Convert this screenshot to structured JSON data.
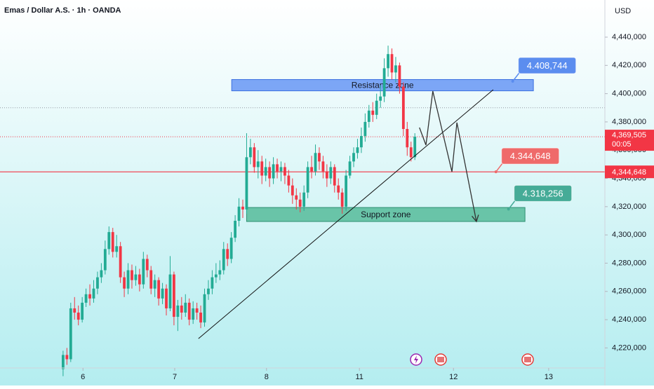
{
  "chart_data": {
    "type": "candlestick",
    "title": "Emas / Dollar A.S. · 1h · OANDA",
    "currency": "USD",
    "x": [
      0,
      1,
      2,
      3,
      4,
      5,
      6,
      7,
      8,
      9,
      10,
      11,
      12,
      13,
      14,
      15,
      16,
      17,
      18,
      19,
      20,
      21,
      22,
      23,
      24,
      25,
      26,
      27,
      28,
      29,
      30,
      31,
      32,
      33,
      34,
      35,
      36,
      37,
      38,
      39,
      40,
      41,
      42,
      43,
      44,
      45,
      46,
      47,
      48,
      49,
      50,
      51,
      52,
      53,
      54,
      55,
      56,
      57,
      58,
      59,
      60,
      61,
      62,
      63,
      64,
      65,
      66,
      67,
      68,
      69,
      70,
      71,
      72,
      73,
      74,
      75,
      76,
      77,
      78,
      79,
      80,
      81,
      82,
      83,
      84,
      85,
      86,
      87,
      88,
      89,
      90,
      91,
      92
    ],
    "open": [
      4205000,
      4215000,
      4212000,
      4248000,
      4245000,
      4240000,
      4252000,
      4258000,
      4255000,
      4262000,
      4270000,
      4275000,
      4290000,
      4302000,
      4288000,
      4292000,
      4270000,
      4262000,
      4275000,
      4268000,
      4272000,
      4265000,
      4283000,
      4275000,
      4262000,
      4268000,
      4255000,
      4262000,
      4248000,
      4272000,
      4242000,
      4250000,
      4245000,
      4252000,
      4240000,
      4248000,
      4245000,
      4238000,
      4258000,
      4262000,
      4270000,
      4272000,
      4275000,
      4290000,
      4283000,
      4298000,
      4310000,
      4320000,
      4318000,
      4355000,
      4362000,
      4348000,
      4352000,
      4342000,
      4348000,
      4340000,
      4350000,
      4345000,
      4348000,
      4342000,
      4335000,
      4328000,
      4325000,
      4320000,
      4330000,
      4348000,
      4345000,
      4358000,
      4352000,
      4345000,
      4340000,
      4348000,
      4335000,
      4330000,
      4320000,
      4342000,
      4352000,
      4358000,
      4362000,
      4370000,
      4380000,
      4388000,
      4385000,
      4395000,
      4398000,
      4418000,
      4428000,
      4415000,
      4420000,
      4405000,
      4375000,
      4362000,
      4355000
    ],
    "high": [
      4218000,
      4220000,
      4252000,
      4256000,
      4250000,
      4256000,
      4262000,
      4265000,
      4268000,
      4274000,
      4280000,
      4296000,
      4306000,
      4305000,
      4300000,
      4295000,
      4274000,
      4280000,
      4279000,
      4278000,
      4276000,
      4288000,
      4286000,
      4278000,
      4272000,
      4270000,
      4266000,
      4265000,
      4285000,
      4274000,
      4254000,
      4256000,
      4258000,
      4255000,
      4253000,
      4252000,
      4250000,
      4262000,
      4268000,
      4275000,
      4280000,
      4282000,
      4295000,
      4294000,
      4302000,
      4314000,
      4326000,
      4325000,
      4372000,
      4368000,
      4365000,
      4360000,
      4356000,
      4354000,
      4352000,
      4355000,
      4354000,
      4352000,
      4351000,
      4346000,
      4340000,
      4333000,
      4330000,
      4335000,
      4352000,
      4356000,
      4364000,
      4362000,
      4356000,
      4350000,
      4352000,
      4350000,
      4340000,
      4333000,
      4346000,
      4356000,
      4362000,
      4368000,
      4376000,
      4386000,
      4392000,
      4394000,
      4400000,
      4406000,
      4425000,
      4434000,
      4432000,
      4426000,
      4422000,
      4408000,
      4380000,
      4366000,
      4372000
    ],
    "low": [
      4200000,
      4208000,
      4210000,
      4240000,
      4236000,
      4238000,
      4249000,
      4250000,
      4252000,
      4258000,
      4266000,
      4272000,
      4286000,
      4284000,
      4284000,
      4266000,
      4256000,
      4258000,
      4262000,
      4264000,
      4260000,
      4262000,
      4270000,
      4258000,
      4256000,
      4250000,
      4251000,
      4243000,
      4246000,
      4236000,
      4232000,
      4240000,
      4242000,
      4236000,
      4237000,
      4240000,
      4234000,
      4235000,
      4254000,
      4258000,
      4266000,
      4268000,
      4272000,
      4278000,
      4280000,
      4295000,
      4306000,
      4312000,
      4315000,
      4350000,
      4344000,
      4340000,
      4336000,
      4338000,
      4334000,
      4336000,
      4340000,
      4338000,
      4336000,
      4330000,
      4322000,
      4318000,
      4316000,
      4317000,
      4326000,
      4340000,
      4342000,
      4346000,
      4340000,
      4334000,
      4336000,
      4330000,
      4325000,
      4315000,
      4317000,
      4340000,
      4348000,
      4354000,
      4358000,
      4366000,
      4376000,
      4380000,
      4382000,
      4390000,
      4394000,
      4412000,
      4410000,
      4408000,
      4400000,
      4370000,
      4356000,
      4352000,
      4353000
    ],
    "close": [
      4215000,
      4212000,
      4248000,
      4245000,
      4240000,
      4252000,
      4258000,
      4255000,
      4262000,
      4270000,
      4275000,
      4290000,
      4302000,
      4288000,
      4292000,
      4270000,
      4262000,
      4275000,
      4268000,
      4272000,
      4265000,
      4283000,
      4275000,
      4262000,
      4268000,
      4255000,
      4262000,
      4248000,
      4272000,
      4242000,
      4250000,
      4245000,
      4252000,
      4240000,
      4248000,
      4245000,
      4238000,
      4258000,
      4262000,
      4270000,
      4272000,
      4275000,
      4290000,
      4283000,
      4298000,
      4310000,
      4320000,
      4318000,
      4355000,
      4362000,
      4348000,
      4352000,
      4342000,
      4348000,
      4340000,
      4350000,
      4345000,
      4348000,
      4342000,
      4335000,
      4328000,
      4325000,
      4320000,
      4330000,
      4348000,
      4345000,
      4358000,
      4352000,
      4345000,
      4340000,
      4348000,
      4335000,
      4330000,
      4320000,
      4342000,
      4352000,
      4358000,
      4362000,
      4370000,
      4380000,
      4388000,
      4385000,
      4395000,
      4398000,
      4418000,
      4428000,
      4415000,
      4420000,
      4405000,
      4375000,
      4362000,
      4355000,
      4369505
    ],
    "up_color": "#22ab94",
    "down_color": "#f23645",
    "xlim": [
      -16.5,
      141.7
    ],
    "xticks": [
      {
        "value": 5.2,
        "label": "6"
      },
      {
        "value": 29.2,
        "label": "7"
      },
      {
        "value": 53.2,
        "label": "8"
      },
      {
        "value": 77.5,
        "label": "11"
      },
      {
        "value": 102.1,
        "label": "12"
      },
      {
        "value": 127,
        "label": "13"
      }
    ],
    "ylim": [
      4205800,
      4466300
    ],
    "yticks": [
      {
        "value": 4220000,
        "label": "4,220,000"
      },
      {
        "value": 4240000,
        "label": "4,240,000"
      },
      {
        "value": 4260000,
        "label": "4,260,000"
      },
      {
        "value": 4280000,
        "label": "4,280,000"
      },
      {
        "value": 4300000,
        "label": "4,300,000"
      },
      {
        "value": 4320000,
        "label": "4,320,000"
      },
      {
        "value": 4340000,
        "label": "4,340,000"
      },
      {
        "value": 4360000,
        "label": "4,360,000"
      },
      {
        "value": 4380000,
        "label": "4,380,000"
      },
      {
        "value": 4400000,
        "label": "4,400,000"
      },
      {
        "value": 4420000,
        "label": "4,420,000"
      },
      {
        "value": 4440000,
        "label": "4,440,000"
      }
    ],
    "current_price": {
      "value": 4369505,
      "label": "4,369,505",
      "countdown": "00:05",
      "color": "#f23645"
    },
    "price_line": {
      "value": 4344648,
      "label": "4,344,648",
      "color": "#f23645"
    },
    "dotted_line": 4390000,
    "zones": [
      {
        "label": "Resistance zone",
        "x": [
          44.1,
          123
        ],
        "y": [
          4402000,
          4410000
        ],
        "color": "#6f9cf5",
        "border": "#3b6fe0"
      },
      {
        "label": "Support zone",
        "x": [
          48,
          120.8
        ],
        "y": [
          4309500,
          4319400
        ],
        "color": "#5dbf9e",
        "border": "#2f8f72"
      }
    ],
    "trendline": {
      "x": [
        35.4,
        112.5
      ],
      "y": [
        4226600,
        4402800
      ],
      "color": "#111111"
    },
    "projection": {
      "x": [
        93.2,
        94.9,
        96.7,
        101.7,
        103,
        108.1
      ],
      "y": [
        4376000,
        4363600,
        4401800,
        4344700,
        4379500,
        4309500
      ],
      "color": "#333333"
    },
    "callouts": [
      {
        "value": 4408744,
        "label": "4.408,744",
        "x": 117.6,
        "color": "#5b8def"
      },
      {
        "value": 4344648,
        "label": "4.344,648",
        "x": 113.2,
        "color": "#ef6a6a"
      },
      {
        "value": 4318256,
        "label": "4.318,256",
        "x": 116.5,
        "color": "#45ab97"
      }
    ]
  }
}
